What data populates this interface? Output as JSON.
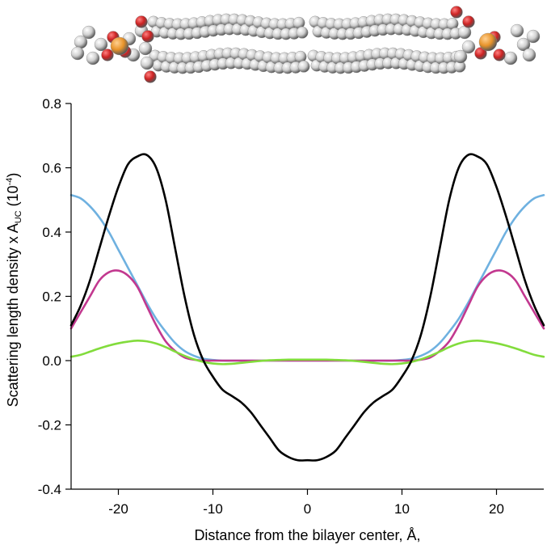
{
  "illustration": {
    "subject": "lipid bilayer space-filling model",
    "colors": {
      "carbon_hydrogen": "#cfcfcf",
      "oxygen": "#cc2222",
      "phosphorus": "#e8932a"
    }
  },
  "chart_data": {
    "type": "line",
    "title": "",
    "xlabel": "Distance from the bilayer center, Å,",
    "ylabel_main": "Scattering length density x A",
    "ylabel_sub": "UC",
    "ylabel_unit_open": " (10",
    "ylabel_unit_exp": "-4",
    "ylabel_unit_close": ")",
    "xlim": [
      -25,
      25
    ],
    "ylim": [
      -0.4,
      0.8
    ],
    "x_ticks": [
      -20,
      -10,
      0,
      10,
      20
    ],
    "x_tick_labels": [
      "-20",
      "-10",
      "0",
      "10",
      "20"
    ],
    "y_ticks": [
      -0.4,
      -0.2,
      0.0,
      0.2,
      0.4,
      0.6,
      0.8
    ],
    "y_tick_labels": [
      "-0.4",
      "-0.2",
      "0.0",
      "0.2",
      "0.4",
      "0.6",
      "0.8"
    ],
    "grid": false,
    "legend": "none",
    "x": [
      -25,
      -24,
      -23,
      -22,
      -21,
      -20,
      -19,
      -18,
      -17,
      -16,
      -15,
      -14,
      -13,
      -12,
      -11,
      -10,
      -9,
      -8,
      -7,
      -6,
      -5,
      -4,
      -3,
      -2,
      -1,
      0,
      1,
      2,
      3,
      4,
      5,
      6,
      7,
      8,
      9,
      10,
      11,
      12,
      13,
      14,
      15,
      16,
      17,
      18,
      19,
      20,
      21,
      22,
      23,
      24,
      25
    ],
    "series": [
      {
        "color": "#000000",
        "values": [
          0.11,
          0.17,
          0.25,
          0.35,
          0.45,
          0.54,
          0.61,
          0.635,
          0.64,
          0.6,
          0.5,
          0.35,
          0.2,
          0.08,
          0.0,
          -0.05,
          -0.09,
          -0.11,
          -0.13,
          -0.16,
          -0.2,
          -0.24,
          -0.28,
          -0.3,
          -0.31,
          -0.31,
          -0.31,
          -0.3,
          -0.28,
          -0.24,
          -0.2,
          -0.16,
          -0.13,
          -0.11,
          -0.09,
          -0.05,
          0.0,
          0.08,
          0.2,
          0.35,
          0.5,
          0.6,
          0.64,
          0.635,
          0.61,
          0.54,
          0.45,
          0.35,
          0.25,
          0.17,
          0.11
        ]
      },
      {
        "color": "#c2388f",
        "values": [
          0.1,
          0.15,
          0.2,
          0.25,
          0.275,
          0.28,
          0.265,
          0.23,
          0.17,
          0.11,
          0.06,
          0.03,
          0.01,
          0.003,
          0.0,
          0.0,
          0.0,
          0.0,
          0.0,
          0.0,
          0.0,
          0.0,
          0.0,
          0.0,
          0.0,
          0.0,
          0.0,
          0.0,
          0.0,
          0.0,
          0.0,
          0.0,
          0.0,
          0.0,
          0.0,
          0.0,
          0.0,
          0.003,
          0.01,
          0.03,
          0.06,
          0.11,
          0.17,
          0.23,
          0.265,
          0.28,
          0.275,
          0.25,
          0.2,
          0.15,
          0.1
        ]
      },
      {
        "color": "#6fb1e0",
        "values": [
          0.515,
          0.505,
          0.48,
          0.445,
          0.4,
          0.345,
          0.29,
          0.235,
          0.18,
          0.13,
          0.09,
          0.055,
          0.03,
          0.015,
          0.006,
          0.002,
          0.0,
          0.0,
          0.0,
          0.0,
          0.0,
          0.0,
          0.0,
          0.0,
          0.0,
          0.0,
          0.0,
          0.0,
          0.0,
          0.0,
          0.0,
          0.0,
          0.0,
          0.0,
          0.0,
          0.002,
          0.006,
          0.015,
          0.03,
          0.055,
          0.09,
          0.13,
          0.18,
          0.235,
          0.29,
          0.345,
          0.4,
          0.445,
          0.48,
          0.505,
          0.515
        ]
      },
      {
        "color": "#82dc3c",
        "values": [
          0.012,
          0.018,
          0.028,
          0.038,
          0.047,
          0.054,
          0.059,
          0.062,
          0.06,
          0.053,
          0.042,
          0.028,
          0.015,
          0.004,
          -0.004,
          -0.009,
          -0.011,
          -0.01,
          -0.007,
          -0.004,
          -0.001,
          0.001,
          0.002,
          0.003,
          0.003,
          0.003,
          0.003,
          0.003,
          0.002,
          0.001,
          -0.001,
          -0.004,
          -0.007,
          -0.01,
          -0.011,
          -0.009,
          -0.004,
          0.004,
          0.015,
          0.028,
          0.042,
          0.053,
          0.06,
          0.062,
          0.059,
          0.054,
          0.047,
          0.038,
          0.028,
          0.018,
          0.012
        ]
      }
    ]
  }
}
